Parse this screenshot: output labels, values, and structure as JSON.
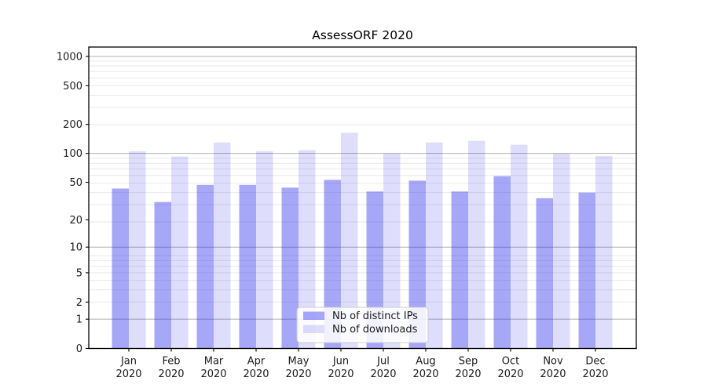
{
  "figure": {
    "title": "AssessORF 2020"
  },
  "chart_data": {
    "type": "bar",
    "title": "AssessORF 2020",
    "categories": [
      "Jan 2020",
      "Feb 2020",
      "Mar 2020",
      "Apr 2020",
      "May 2020",
      "Jun 2020",
      "Jul 2020",
      "Aug 2020",
      "Sep 2020",
      "Oct 2020",
      "Nov 2020",
      "Dec 2020"
    ],
    "series": [
      {
        "name": "Nb of distinct IPs",
        "color": "rgba(34,34,238,0.40)",
        "values": [
          43,
          31,
          47,
          47,
          44,
          53,
          40,
          52,
          40,
          58,
          34,
          39
        ]
      },
      {
        "name": "Nb of downloads",
        "color": "rgba(34,34,238,0.15)",
        "values": [
          105,
          93,
          130,
          105,
          108,
          164,
          100,
          130,
          135,
          123,
          100,
          94
        ]
      }
    ],
    "xlabel": "",
    "ylabel": "",
    "yscale": "log1p",
    "yticks": [
      0,
      1,
      2,
      5,
      10,
      20,
      50,
      100,
      200,
      500,
      1000
    ],
    "ylim": [
      0,
      1250
    ],
    "grid": "both",
    "legend_position": "lower center",
    "colors": {
      "major_grid": "#b0b0b0",
      "minor_grid": "#e9e9e9",
      "spine": "#000000",
      "legend_border": "#cccccc",
      "legend_bg": "rgba(255,255,255,0.85)"
    }
  }
}
